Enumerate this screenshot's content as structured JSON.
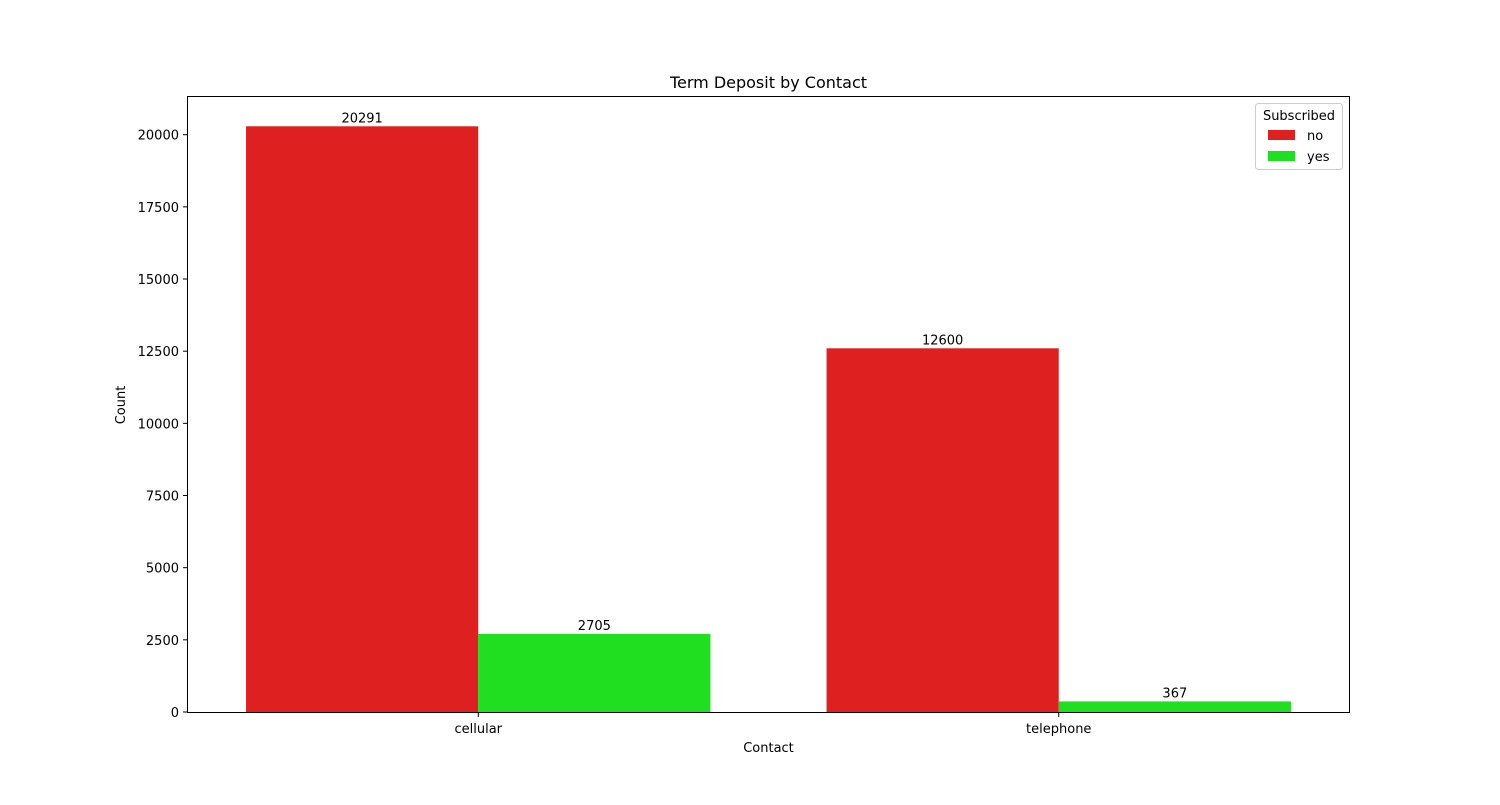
{
  "chart_data": {
    "type": "bar",
    "title": "Term Deposit by Contact",
    "xlabel": "Contact",
    "ylabel": "Count",
    "categories": [
      "cellular",
      "telephone"
    ],
    "series": [
      {
        "name": "no",
        "values": [
          20291,
          12600
        ],
        "color": "#df2020"
      },
      {
        "name": "yes",
        "values": [
          2705,
          367
        ],
        "color": "#20df20"
      }
    ],
    "ylim": [
      0,
      21306
    ],
    "yticks": [
      0,
      2500,
      5000,
      7500,
      10000,
      12500,
      15000,
      17500,
      20000
    ],
    "legend": {
      "title": "Subscribed",
      "placement": "top-right"
    },
    "grid": false
  }
}
